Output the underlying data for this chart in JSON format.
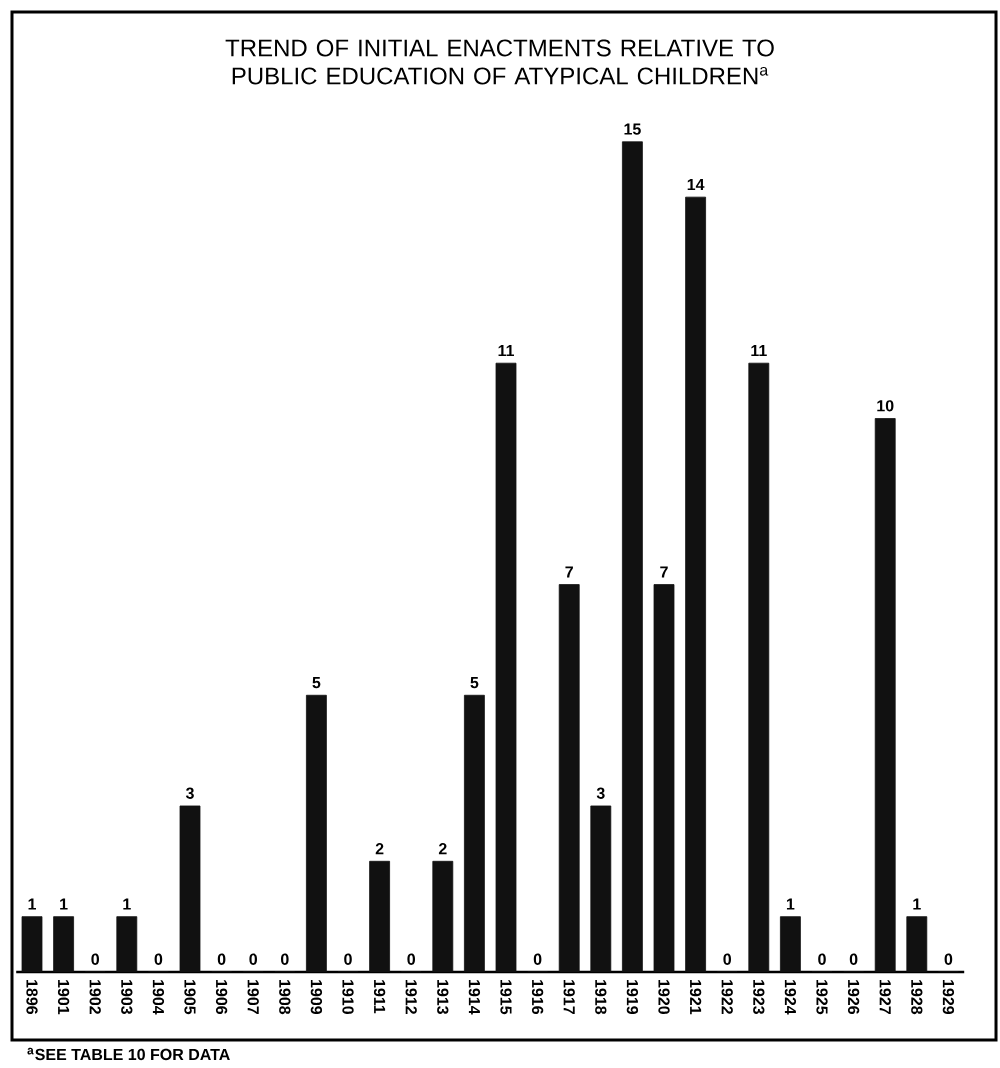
{
  "chart_data": {
    "type": "bar",
    "title": "TREND OF INITIAL ENACTMENTS RELATIVE TO PUBLIC EDUCATION OF ATYPICAL CHILDREN$^{a}$",
    "categories": [
      "1896",
      "1901",
      "1902",
      "1903",
      "1904",
      "1905",
      "1906",
      "1907",
      "1908",
      "1909",
      "1910",
      "1911",
      "1912",
      "1913",
      "1914",
      "1915",
      "1916",
      "1917",
      "1918",
      "1919",
      "1920",
      "1921",
      "1922",
      "1923",
      "1924",
      "1925",
      "1926",
      "1927",
      "1928",
      "1929"
    ],
    "values": [
      1,
      1,
      0,
      1,
      0,
      3,
      0,
      0,
      0,
      5,
      0,
      2,
      0,
      2,
      5,
      11,
      0,
      7,
      3,
      15,
      7,
      14,
      0,
      11,
      1,
      0,
      0,
      10,
      1,
      0
    ],
    "color": "#111111",
    "data_labels": true,
    "annotations": [
      "$^{a}$SEE TABLE 10 FOR DATA"
    ]
  }
}
